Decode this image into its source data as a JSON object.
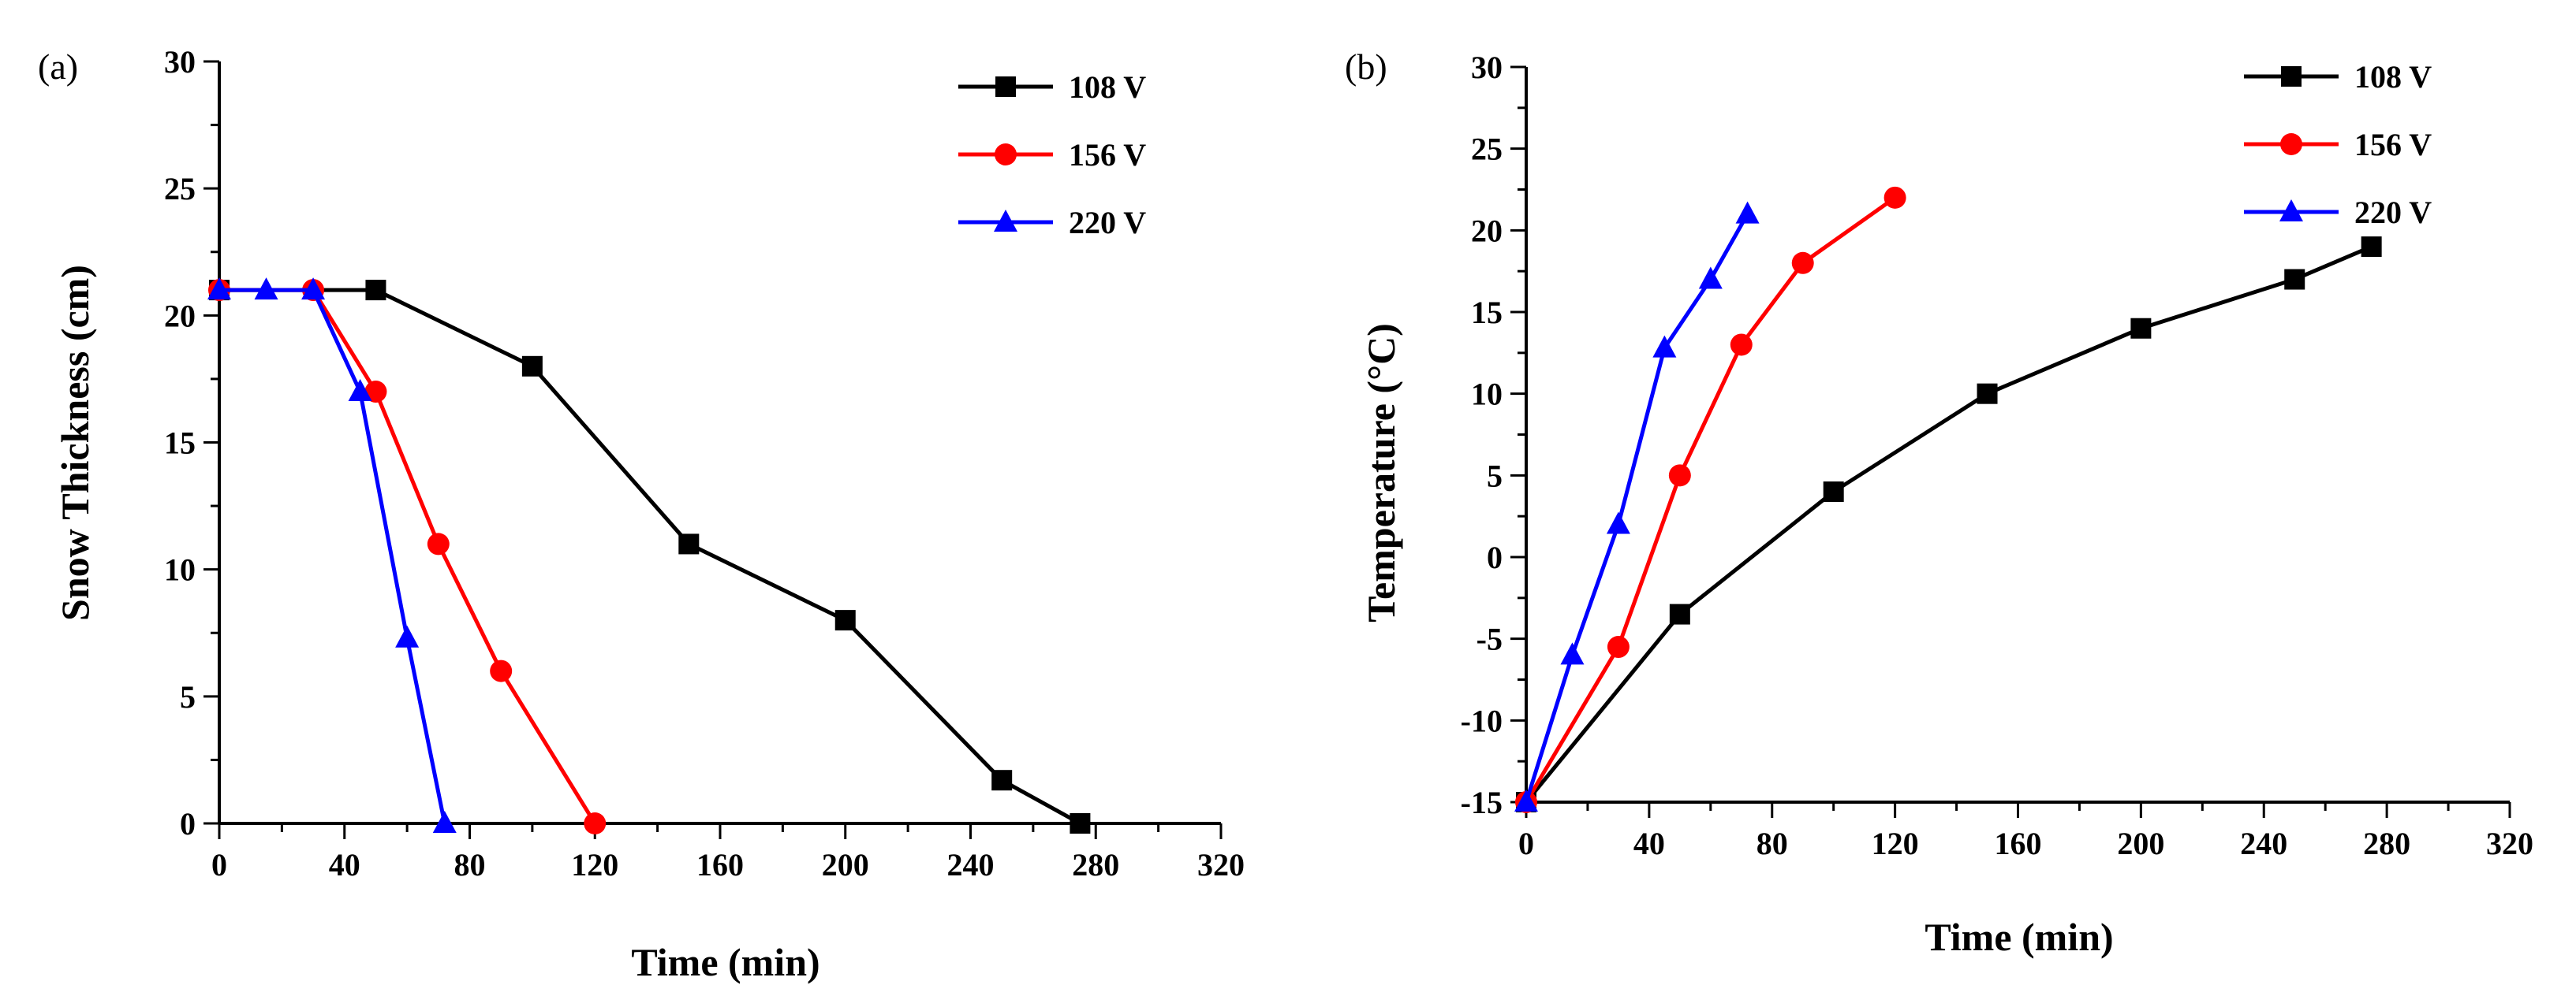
{
  "chart_data": [
    {
      "panel": "(a)",
      "type": "line",
      "xlabel": "Time (min)",
      "ylabel": "Snow Thickness (cm)",
      "xlim": [
        0,
        320
      ],
      "ylim": [
        0,
        30
      ],
      "xticks": [
        0,
        40,
        80,
        120,
        160,
        200,
        240,
        280,
        320
      ],
      "yticks": [
        0,
        5,
        10,
        15,
        20,
        25,
        30
      ],
      "legend_position": "top-right",
      "series": [
        {
          "name": "108 V",
          "color": "#000000",
          "marker": "square",
          "x": [
            0,
            50,
            100,
            150,
            200,
            250,
            275
          ],
          "y": [
            21,
            21,
            18,
            11,
            8,
            1.7,
            0
          ]
        },
        {
          "name": "156 V",
          "color": "#ff0000",
          "marker": "circle",
          "x": [
            0,
            30,
            50,
            70,
            90,
            120
          ],
          "y": [
            21,
            21,
            17,
            11,
            6,
            0
          ]
        },
        {
          "name": "220 V",
          "color": "#0000ff",
          "marker": "triangle",
          "x": [
            0,
            15,
            30,
            45,
            60,
            72
          ],
          "y": [
            21,
            21,
            21,
            17,
            7.3,
            0
          ]
        }
      ]
    },
    {
      "panel": "(b)",
      "type": "line",
      "xlabel": "Time (min)",
      "ylabel": "Temperature (°C)",
      "xlim": [
        0,
        320
      ],
      "ylim": [
        -15,
        30
      ],
      "xticks": [
        0,
        40,
        80,
        120,
        160,
        200,
        240,
        280,
        320
      ],
      "yticks": [
        -15,
        -10,
        -5,
        0,
        5,
        10,
        15,
        20,
        25,
        30
      ],
      "legend_position": "top-right",
      "series": [
        {
          "name": "108 V",
          "color": "#000000",
          "marker": "square",
          "x": [
            0,
            50,
            100,
            150,
            200,
            250,
            275
          ],
          "y": [
            -15,
            -3.5,
            4,
            10,
            14,
            17,
            19
          ]
        },
        {
          "name": "156 V",
          "color": "#ff0000",
          "marker": "circle",
          "x": [
            0,
            30,
            50,
            70,
            90,
            120
          ],
          "y": [
            -15,
            -5.5,
            5,
            13,
            18,
            22
          ]
        },
        {
          "name": "220 V",
          "color": "#0000ff",
          "marker": "triangle",
          "x": [
            0,
            15,
            30,
            45,
            60,
            72
          ],
          "y": [
            -15,
            -6,
            2,
            12.8,
            17,
            21
          ]
        }
      ]
    }
  ]
}
